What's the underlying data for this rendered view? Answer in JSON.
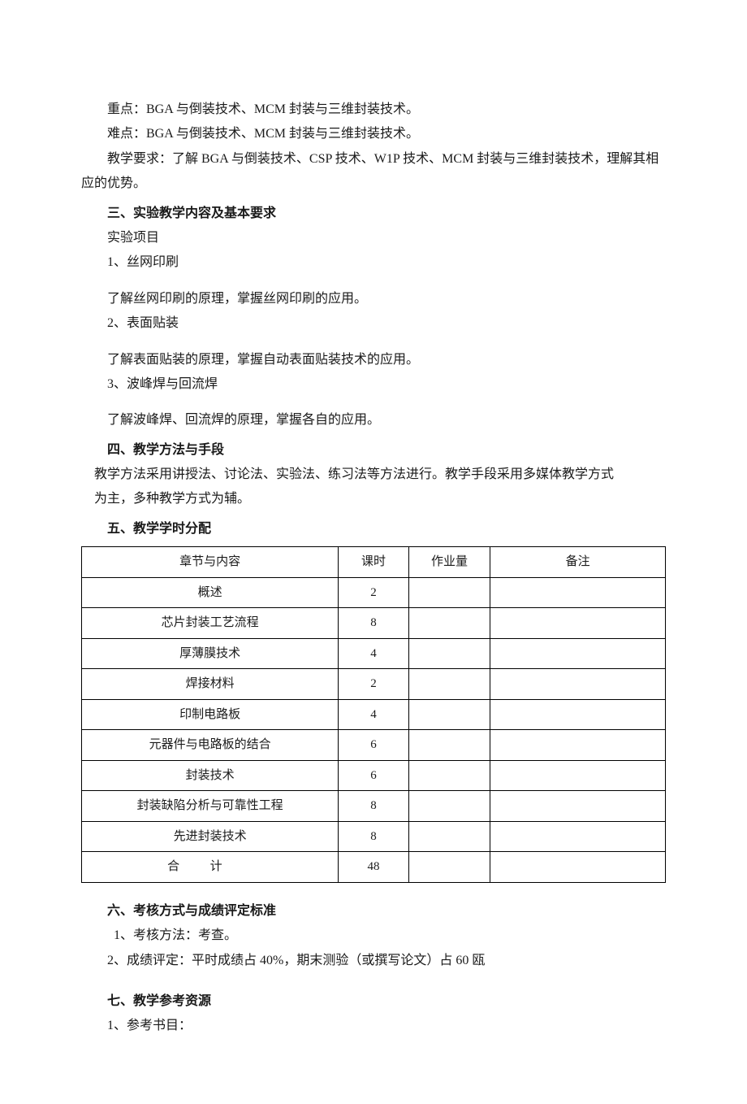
{
  "p1": "重点：BGA 与倒装技术、MCM 封装与三维封装技术。",
  "p2": "难点：BGA 与倒装技术、MCM 封装与三维封装技术。",
  "p3": "教学要求：了解 BGA 与倒装技术、CSP 技术、W1P 技术、MCM 封装与三维封装技术，理解其相应的优势。",
  "sec3_title": "三、实验教学内容及基本要求",
  "sec3_sub": "实验项目",
  "sec3_i1": "1、丝网印刷",
  "sec3_i1_desc": "了解丝网印刷的原理，掌握丝网印刷的应用。",
  "sec3_i2": "2、表面贴装",
  "sec3_i2_desc": "了解表面贴装的原理，掌握自动表面贴装技术的应用。",
  "sec3_i3": "3、波峰焊与回流焊",
  "sec3_i3_desc": "了解波峰焊、回流焊的原理，掌握各自的应用。",
  "sec4_title": "四、教学方法与手段",
  "sec4_p1": "教学方法采用讲授法、讨论法、实验法、练习法等方法进行。教学手段采用多媒体教学方式",
  "sec4_p2": "为主，多种教学方式为辅。",
  "sec5_title": "五、教学学时分配",
  "table": {
    "headers": [
      "章节与内容",
      "课时",
      "作业量",
      "备注"
    ],
    "rows": [
      [
        "概述",
        "2",
        "",
        ""
      ],
      [
        "芯片封装工艺流程",
        "8",
        "",
        ""
      ],
      [
        "厚薄膜技术",
        "4",
        "",
        ""
      ],
      [
        "焊接材料",
        "2",
        "",
        ""
      ],
      [
        "印制电路板",
        "4",
        "",
        ""
      ],
      [
        "元器件与电路板的结合",
        "6",
        "",
        ""
      ],
      [
        "封装技术",
        "6",
        "",
        ""
      ],
      [
        "封装缺陷分析与可靠性工程",
        "8",
        "",
        ""
      ],
      [
        "先进封装技术",
        "8",
        "",
        ""
      ]
    ],
    "total_label": "合计",
    "total_value": "48"
  },
  "sec6_title": "六、考核方式与成绩评定标准",
  "sec6_i1": "1、考核方法：考查。",
  "sec6_i2": "2、成绩评定：平时成绩占 40%，期末测验（或撰写论文）占 60 瓯",
  "sec7_title": "七、教学参考资源",
  "sec7_i1": "1、参考书目："
}
